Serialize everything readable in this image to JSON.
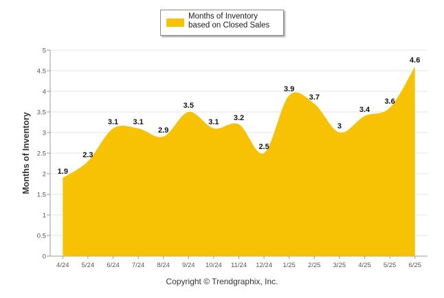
{
  "chart_data": {
    "type": "area",
    "categories": [
      "4/24",
      "5/24",
      "6/24",
      "7/24",
      "8/24",
      "9/24",
      "10/24",
      "11/24",
      "12/24",
      "1/25",
      "2/25",
      "3/25",
      "4/25",
      "5/25",
      "6/25"
    ],
    "series": [
      {
        "name": "Months of Inventory based on Closed Sales",
        "values": [
          1.9,
          2.3,
          3.1,
          3.1,
          2.9,
          3.5,
          3.1,
          3.2,
          2.5,
          3.9,
          3.7,
          3,
          3.4,
          3.6,
          4.6
        ],
        "labels": [
          "1.9",
          "2.3",
          "3.1",
          "3.1",
          "2.9",
          "3.5",
          "3.1",
          "3.2",
          "2.5",
          "3.9",
          "3.7",
          "3",
          "3.4",
          "3.6",
          "4.6"
        ],
        "color": "#f7c204"
      }
    ],
    "ylabel": "Months of Inventory",
    "ylim": [
      0,
      5
    ],
    "yticks": [
      "0",
      "0.5",
      "1",
      "1.5",
      "2",
      "2.5",
      "3",
      "3.5",
      "4",
      "4.5",
      "5"
    ],
    "grid": true,
    "legend": "top-center"
  },
  "legend": {
    "label": "Months of Inventory based on Closed Sales"
  },
  "footer": {
    "copyright": "Copyright © Trendgraphix, Inc."
  },
  "colors": {
    "area": "#f7c204",
    "grid": "#e6e6e6",
    "axis": "#9a9a9a"
  }
}
